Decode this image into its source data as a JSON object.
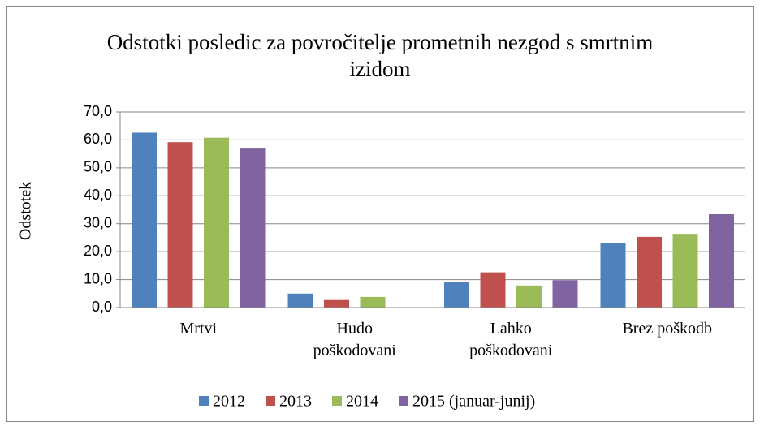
{
  "chart_data": {
    "type": "bar",
    "title": "Odstotki posledic za povročitelje prometnih nezgod  s smrtnim izidom",
    "y_label": "Odstotek",
    "categories": [
      "Mrtvi",
      "Hudo poškodovani",
      "Lahko poškodovani",
      "Brez poškodb"
    ],
    "series": [
      {
        "name": "2012",
        "color": "#4f81bd",
        "values": [
          62.6,
          5.0,
          9.1,
          23.1
        ]
      },
      {
        "name": "2013",
        "color": "#c0504d",
        "values": [
          59.2,
          2.7,
          12.6,
          25.3
        ]
      },
      {
        "name": "2014",
        "color": "#9bbb59",
        "values": [
          60.8,
          3.8,
          7.9,
          26.4
        ]
      },
      {
        "name": "2015 (januar-junij)",
        "color": "#8064a2",
        "values": [
          56.9,
          0,
          9.8,
          33.4
        ]
      }
    ],
    "ylim": [
      0,
      70
    ],
    "yticks": [
      {
        "value": 0,
        "label": "0,0"
      },
      {
        "value": 10,
        "label": "10,0"
      },
      {
        "value": 20,
        "label": "20,0"
      },
      {
        "value": 30,
        "label": "30,0"
      },
      {
        "value": 40,
        "label": "40,0"
      },
      {
        "value": 50,
        "label": "50,0"
      },
      {
        "value": 60,
        "label": "60,0"
      },
      {
        "value": 70,
        "label": "70,0"
      }
    ],
    "grid": true,
    "legend": "bottom"
  }
}
